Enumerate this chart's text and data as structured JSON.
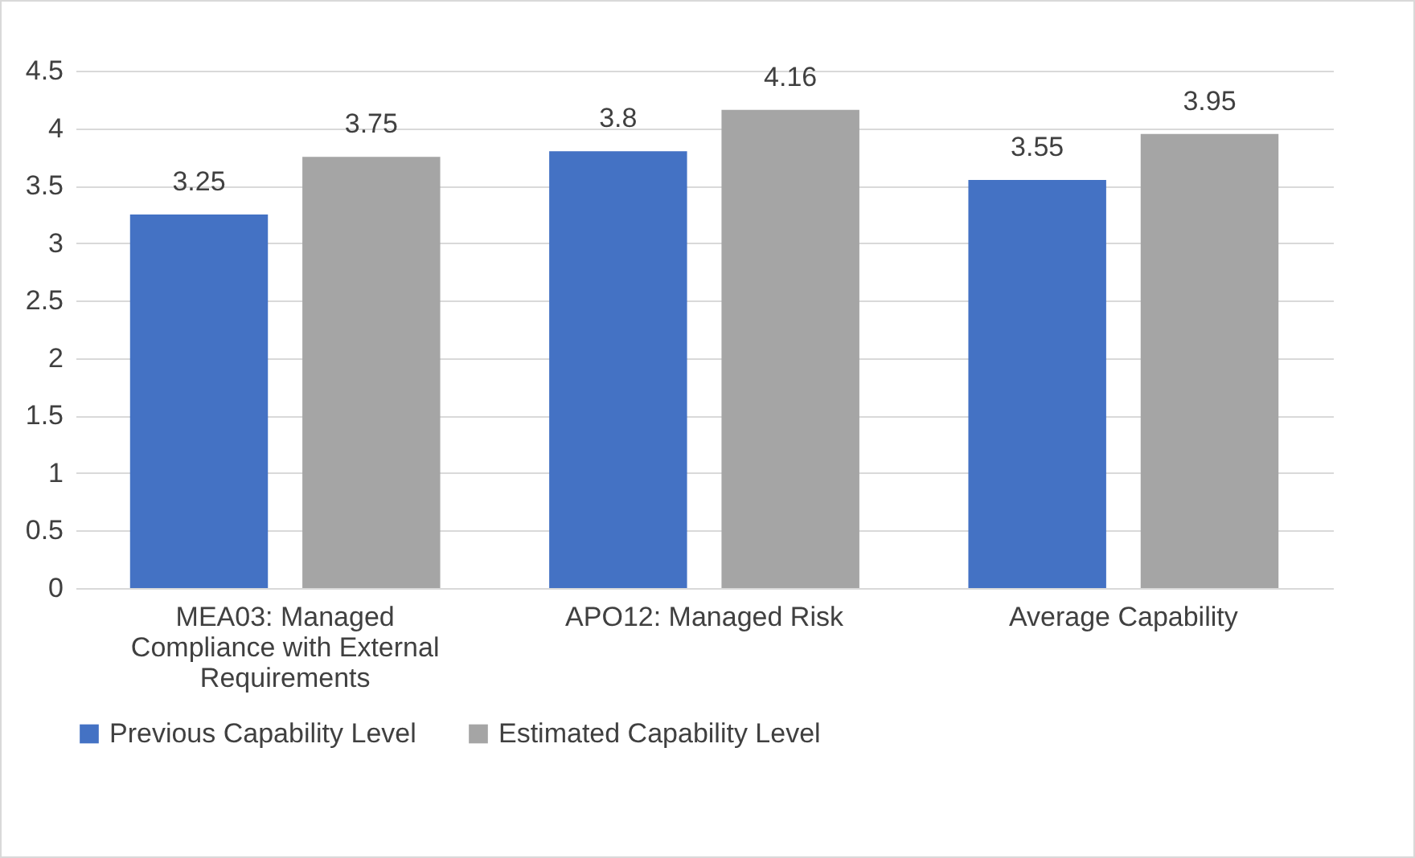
{
  "chart_data": {
    "type": "bar",
    "categories": [
      "MEA03: Managed Compliance with External Requirements",
      "APO12: Managed Risk",
      "Average Capability"
    ],
    "series": [
      {
        "name": "Previous Capability Level",
        "color": "#4472c4",
        "values": [
          3.25,
          3.8,
          3.55
        ]
      },
      {
        "name": "Estimated Capability Level",
        "color": "#a5a5a5",
        "values": [
          3.75,
          4.16,
          3.95
        ]
      }
    ],
    "ylim": [
      0,
      4.5
    ],
    "yticks": [
      0,
      0.5,
      1,
      1.5,
      2,
      2.5,
      3,
      3.5,
      4,
      4.5
    ],
    "grid": "y",
    "legend": "bottom",
    "data_labels": true
  }
}
